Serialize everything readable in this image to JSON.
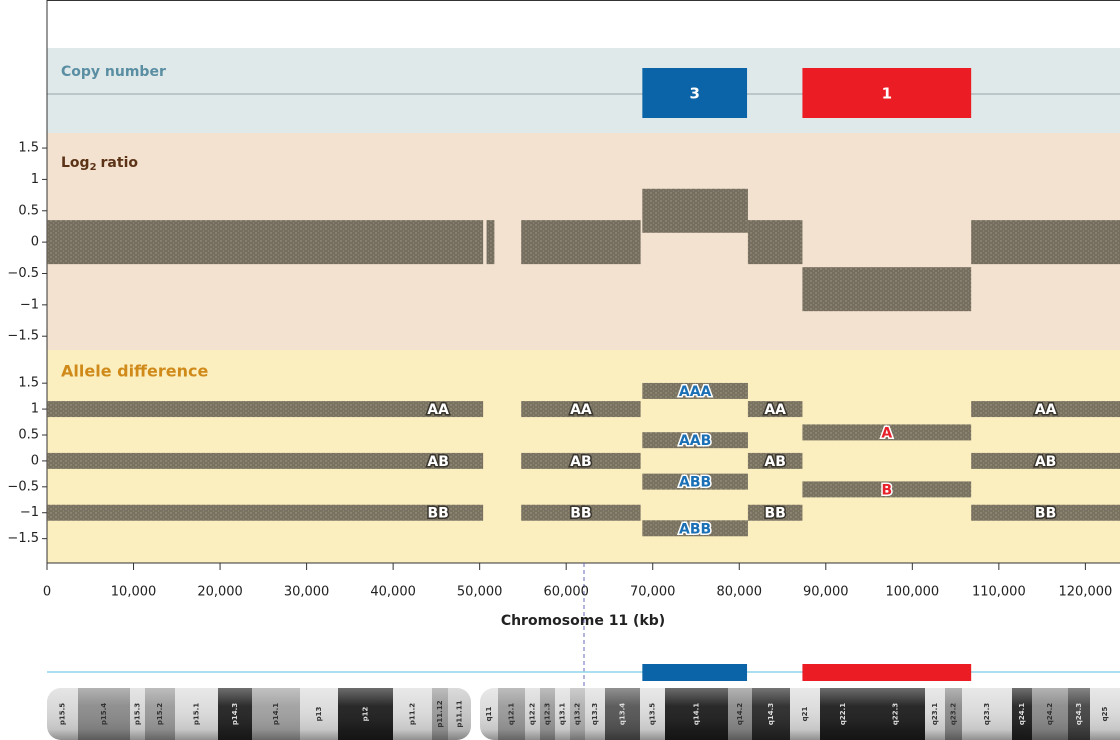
{
  "chart_data": {
    "type": "genome",
    "x_label": "Chromosome 11 (kb)",
    "xlim": [
      0,
      124000
    ],
    "xticks": [
      0,
      {
        "value": 10000,
        "label": "10,000"
      },
      {
        "value": 20000,
        "label": "20,000"
      },
      {
        "value": 30000,
        "label": "30,000"
      },
      {
        "value": 40000,
        "label": "40,000"
      },
      {
        "value": 50000,
        "label": "50,000"
      },
      {
        "value": 60000,
        "label": "60,000"
      },
      {
        "value": 70000,
        "label": "70,000"
      },
      {
        "value": 80000,
        "label": "80,000"
      },
      {
        "value": 90000,
        "label": "90,000"
      },
      {
        "value": 100000,
        "label": "100,000"
      },
      {
        "value": 110000,
        "label": "110,000"
      },
      {
        "value": 120000,
        "label": "120,000"
      }
    ],
    "copy_number": {
      "label": "Copy number",
      "segments": [
        {
          "start": 68800,
          "end": 80900,
          "value": 3,
          "color": "#0b64a8"
        },
        {
          "start": 87300,
          "end": 106800,
          "value": 1,
          "color": "#ec1c24"
        }
      ]
    },
    "log2_ratio": {
      "label": "Log",
      "label_sub": "2",
      "label_rest": "ratio",
      "color": "#5f5a4d",
      "ylim": [
        -1.72,
        1.74
      ],
      "yticks": [
        {
          "value": -1.5,
          "label": "−1.5"
        },
        {
          "value": -1,
          "label": "−1"
        },
        {
          "value": -0.5,
          "label": "−0.5"
        },
        0,
        0.5,
        1,
        1.5
      ],
      "segments": [
        {
          "start": 0,
          "end": 50400,
          "value": 0
        },
        {
          "start": 50800,
          "end": 51700,
          "value": 0
        },
        {
          "start": 54800,
          "end": 68600,
          "value": 0
        },
        {
          "start": 68800,
          "end": 81000,
          "value": 0.5
        },
        {
          "start": 81000,
          "end": 87300,
          "value": 0
        },
        {
          "start": 87300,
          "end": 106800,
          "value": -0.75
        },
        {
          "start": 106800,
          "end": 124000,
          "value": 0
        }
      ]
    },
    "allele_difference": {
      "label": "Allele difference",
      "ylim": [
        -1.97,
        2.14
      ],
      "yticks": [
        {
          "value": -1.5,
          "label": "−1.5"
        },
        {
          "value": -1,
          "label": "−1"
        },
        {
          "value": -0.5,
          "label": "−0.5"
        },
        0,
        0.5,
        1,
        1.5
      ],
      "segments": [
        {
          "start": 0,
          "end": 50400,
          "label_color": "#ffffff",
          "bands": [
            {
              "label": "AA",
              "value": 1
            },
            {
              "label": "AB",
              "value": 0
            },
            {
              "label": "BB",
              "value": -1
            }
          ]
        },
        {
          "start": 54800,
          "end": 68600,
          "label_color": "#ffffff",
          "bands": [
            {
              "label": "AA",
              "value": 1
            },
            {
              "label": "AB",
              "value": 0
            },
            {
              "label": "BB",
              "value": -1
            }
          ]
        },
        {
          "start": 68800,
          "end": 81000,
          "label_color": "#1a6fb5",
          "bands": [
            {
              "label": "AAA",
              "value": 1.35
            },
            {
              "label": "AAB",
              "value": 0.4
            },
            {
              "label": "ABB",
              "value": -0.4
            },
            {
              "label": "ABB",
              "value": -1.3
            }
          ]
        },
        {
          "start": 81000,
          "end": 87300,
          "label_color": "#ffffff",
          "bands": [
            {
              "label": "AA",
              "value": 1
            },
            {
              "label": "AB",
              "value": 0
            },
            {
              "label": "BB",
              "value": -1
            }
          ]
        },
        {
          "start": 87300,
          "end": 106800,
          "label_color": "#e8202a",
          "bands": [
            {
              "label": "A",
              "value": 0.55
            },
            {
              "label": "B",
              "value": -0.55
            }
          ]
        },
        {
          "start": 106800,
          "end": 124000,
          "label_color": "#ffffff",
          "bands": [
            {
              "label": "AA",
              "value": 1
            },
            {
              "label": "AB",
              "value": 0
            },
            {
              "label": "BB",
              "value": -1
            }
          ]
        }
      ]
    },
    "ideogram": {
      "bands": [
        "p15.5",
        "p15.4",
        "p15.3",
        "p15.2",
        "p15.1",
        "p14.3",
        "p14.1",
        "p13",
        "p12",
        "p11.2",
        "p11.12",
        "p11.11",
        "q11",
        "q12.1",
        "q12.2",
        "q12.3",
        "q13.1",
        "q13.2",
        "q13.3",
        "q13.4",
        "q13.5",
        "q14.1",
        "q14.2",
        "q14.3",
        "q21",
        "q22.1",
        "q22.3",
        "q23.1",
        "q23.2",
        "q23.3",
        "q24.1",
        "q24.2",
        "q24.3",
        "q25"
      ]
    }
  }
}
